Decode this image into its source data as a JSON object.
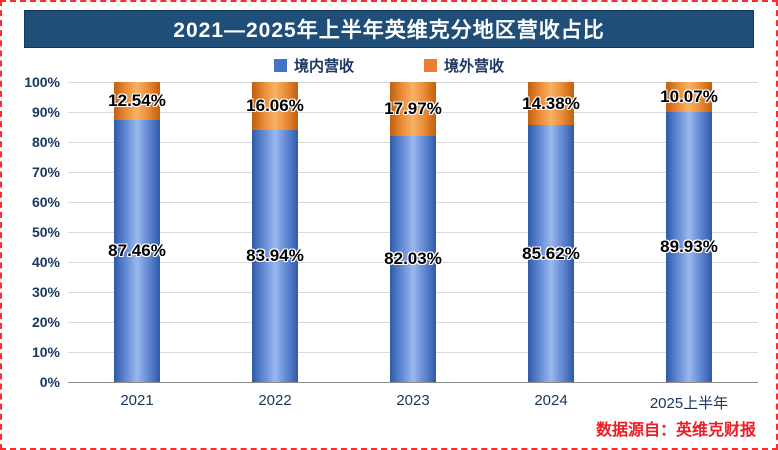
{
  "chart_data": {
    "type": "bar",
    "stacked": true,
    "stack_total": 100,
    "title": "2021—2025年上半年英维克分地区营收占比",
    "categories": [
      "2021",
      "2022",
      "2023",
      "2024",
      "2025上半年"
    ],
    "series": [
      {
        "key": "domestic",
        "name": "境内营收",
        "color": "#4472C4",
        "values": [
          87.46,
          83.94,
          82.03,
          85.62,
          89.93
        ]
      },
      {
        "key": "overseas",
        "name": "境外营收",
        "color": "#ED7D31",
        "values": [
          12.54,
          16.06,
          17.97,
          14.38,
          10.07
        ]
      }
    ],
    "ylim": [
      0,
      100
    ],
    "ytick_step": 10,
    "ytick_labels": [
      "0%",
      "10%",
      "20%",
      "30%",
      "40%",
      "50%",
      "60%",
      "70%",
      "80%",
      "90%",
      "100%"
    ],
    "value_suffix": "%",
    "grid": true,
    "legend_position": "top",
    "source_note": "数据源自：英维克财报"
  },
  "colors": {
    "title_bg": "#1F4E79",
    "title_text": "#FFFFFF",
    "frame_border": "#FF2B2B",
    "axis_text": "#17375E",
    "gridline": "#D9D9D9",
    "domestic_bar": "#4472C4",
    "overseas_bar": "#ED7D31",
    "source_text": "#EE1C25"
  }
}
